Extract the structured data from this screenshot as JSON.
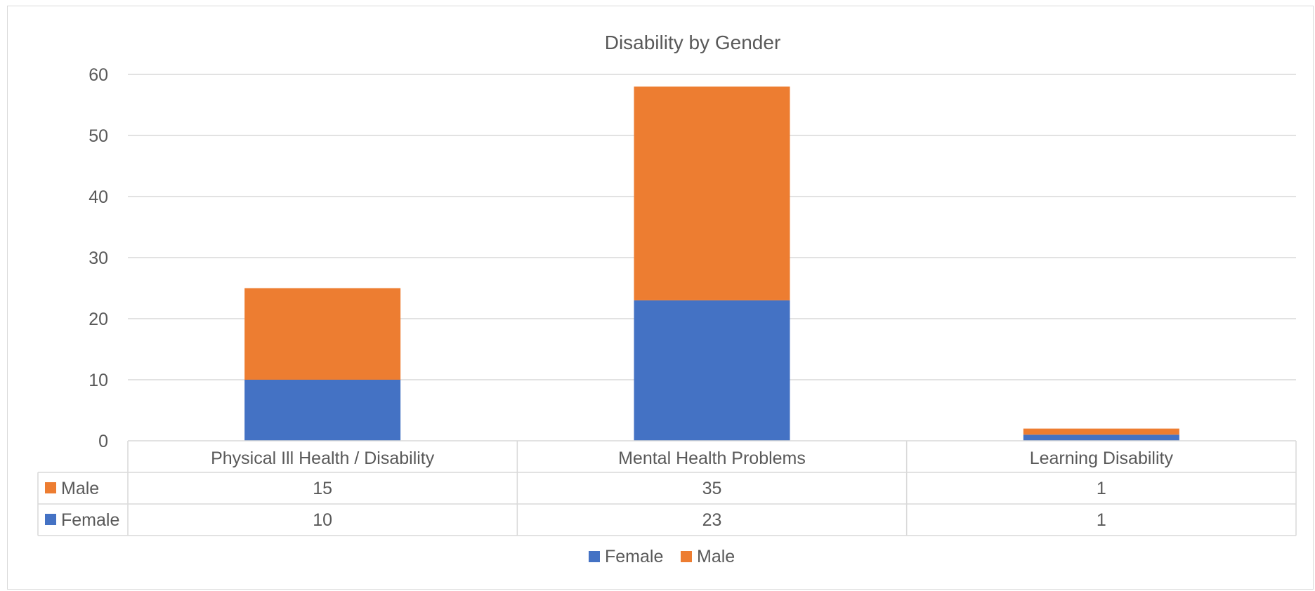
{
  "chart_data": {
    "type": "bar",
    "stacked": true,
    "title": "Disability by Gender",
    "categories": [
      "Physical Ill Health / Disability",
      "Mental Health Problems",
      "Learning Disability"
    ],
    "series": [
      {
        "name": "Female",
        "values": [
          10,
          23,
          1
        ],
        "color": "#4472C4"
      },
      {
        "name": "Male",
        "values": [
          15,
          35,
          1
        ],
        "color": "#ED7D31"
      }
    ],
    "ylim": [
      0,
      60
    ],
    "yticks": [
      0,
      10,
      20,
      30,
      40,
      50,
      60
    ],
    "grid": true,
    "data_table": {
      "rows": [
        {
          "name": "Male",
          "values": [
            15,
            35,
            1
          ],
          "color": "#ED7D31"
        },
        {
          "name": "Female",
          "values": [
            10,
            23,
            1
          ],
          "color": "#4472C4"
        }
      ]
    },
    "legend": {
      "position": "bottom",
      "entries": [
        "Female",
        "Male"
      ]
    }
  }
}
